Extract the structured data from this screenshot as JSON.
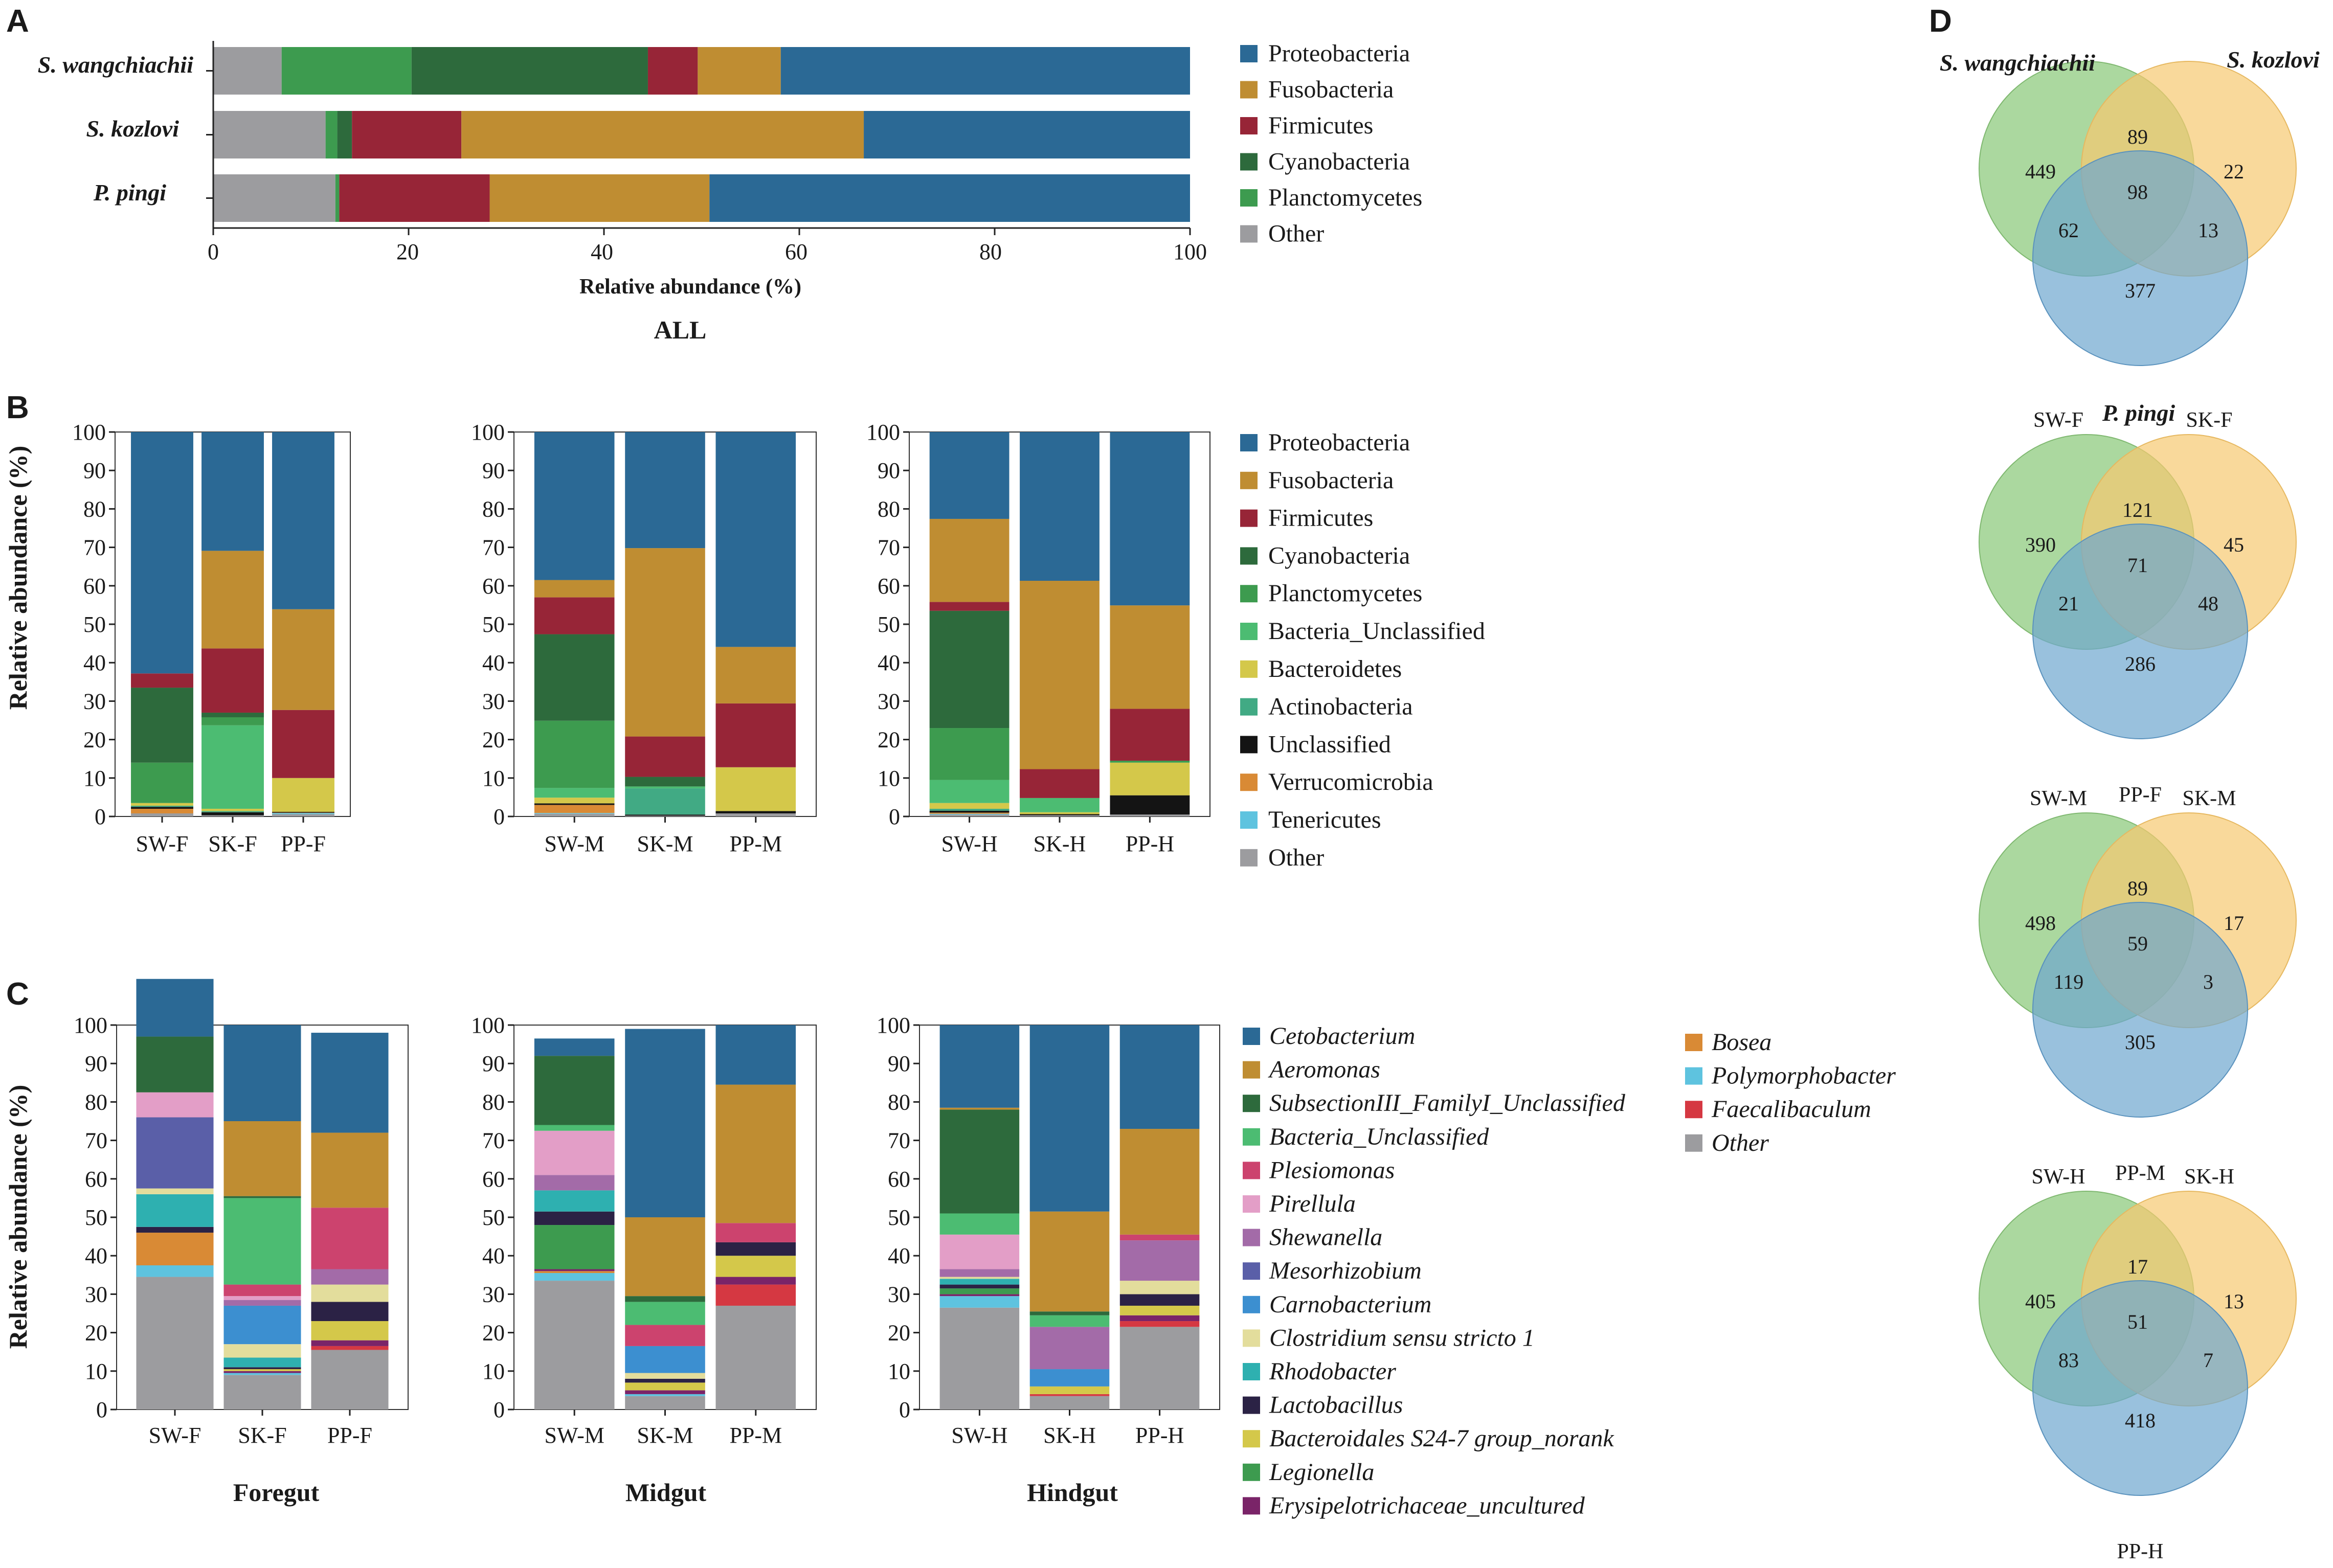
{
  "panels": {
    "A": "A",
    "B": "B",
    "C": "C",
    "D": "D"
  },
  "colors": {
    "Proteobacteria": "#2b6995",
    "Fusobacteria": "#bf8d32",
    "Firmicutes": "#972537",
    "Cyanobacteria": "#2d6a3c",
    "Planctomycetes": "#3d9b4f",
    "Bacteria_Unclassified": "#4cbc72",
    "Bacteroidetes": "#d4c84a",
    "Actinobacteria": "#41aa84",
    "Unclassified": "#141414",
    "Verrucomicrobia": "#d98a35",
    "Tenericutes": "#5ec3df",
    "Other": "#9c9c9f",
    "Cetobacterium": "#2b6995",
    "Aeromonas": "#bf8d32",
    "SubsectionIII_FamilyI_Unclassified": "#2d6a3c",
    "Plesiomonas": "#cc436e",
    "Pirellula": "#e39ec7",
    "Shewanella": "#a36ba8",
    "Mesorhizobium": "#5a5fa8",
    "Carnobacterium": "#3c8fd0",
    "Clostridium sensu stricto 1": "#e3dd9c",
    "Rhodobacter": "#2eb0b0",
    "Lactobacillus": "#2b2245",
    "Bacteroidales S24-7 group_norank": "#d4c84a",
    "Legionella": "#3d9b4f",
    "Erysipelotrichaceae_uncultured": "#7a2468",
    "Bosea": "#d98a35",
    "Polymorphobacter": "#5ec3df",
    "Faecalibaculum": "#d53842",
    "venn_green": "#8fcb7f",
    "venn_orange": "#f6c971",
    "venn_blue": "#6ea6cf"
  },
  "chart_data": [
    {
      "panel": "A",
      "type": "bar",
      "orientation": "horizontal",
      "stacked": true,
      "title": "ALL",
      "xlabel": "Relative abundance (%)",
      "xlim": [
        0,
        100
      ],
      "xticks": [
        "0",
        "20",
        "40",
        "60",
        "80",
        "100"
      ],
      "categories": [
        "S. wangchiachii",
        "S. kozlovi",
        "P. pingi"
      ],
      "series": [
        {
          "name": "Other",
          "values": [
            7,
            11.5,
            12.5
          ]
        },
        {
          "name": "Planctomycetes",
          "values": [
            13.3,
            1.2,
            0.4
          ]
        },
        {
          "name": "Cyanobacteria",
          "values": [
            24.2,
            1.5,
            0
          ]
        },
        {
          "name": "Firmicutes",
          "values": [
            5.1,
            11.2,
            15.4
          ]
        },
        {
          "name": "Fusobacteria",
          "values": [
            8.5,
            41.2,
            22.5
          ]
        },
        {
          "name": "Proteobacteria",
          "values": [
            41.9,
            33.4,
            49.2
          ]
        }
      ],
      "legend": [
        "Proteobacteria",
        "Fusobacteria",
        "Firmicutes",
        "Cyanobacteria",
        "Planctomycetes",
        "Other"
      ]
    },
    {
      "panel": "B",
      "type": "bar",
      "stacked": true,
      "ylabel": "Relative abundance (%)",
      "ylim": [
        0,
        100
      ],
      "yticks": [
        "0",
        "10",
        "20",
        "30",
        "40",
        "50",
        "60",
        "70",
        "80",
        "90",
        "100"
      ],
      "groups": [
        {
          "categories": [
            "SW-F",
            "SK-F",
            "PP-F"
          ]
        },
        {
          "categories": [
            "SW-M",
            "SK-M",
            "PP-M"
          ]
        },
        {
          "categories": [
            "SW-H",
            "SK-H",
            "PP-H"
          ]
        }
      ],
      "stack_order": [
        "Other",
        "Tenericutes",
        "Verrucomicrobia",
        "Unclassified",
        "Actinobacteria",
        "Bacteroidetes",
        "Bacteria_Unclassified",
        "Planctomycetes",
        "Cyanobacteria",
        "Firmicutes",
        "Fusobacteria",
        "Proteobacteria"
      ],
      "bars": [
        [
          0.8,
          0,
          1.2,
          0.5,
          0.3,
          0.7,
          0,
          10.5,
          19.5,
          3.7,
          0,
          62.8
        ],
        [
          0.3,
          0,
          0,
          0.8,
          0.3,
          0.6,
          21.7,
          2.1,
          1.2,
          16.7,
          25.4,
          30.9
        ],
        [
          0.6,
          0.3,
          0.1,
          0.2,
          0,
          8.8,
          0,
          0,
          0,
          17.7,
          26.2,
          46.1
        ],
        [
          0.7,
          0.2,
          2.1,
          0.4,
          0,
          1.5,
          2.5,
          17.5,
          22.5,
          9.6,
          4.5,
          38.5
        ],
        [
          0.2,
          0,
          0,
          0.3,
          6.8,
          0,
          0.5,
          0,
          2.5,
          10.5,
          49,
          30.2
        ],
        [
          0.8,
          0,
          0,
          0.6,
          0,
          11.4,
          0,
          0,
          0,
          16.6,
          14.7,
          55.9
        ],
        [
          0.5,
          0.2,
          0.3,
          0.5,
          0.5,
          1.5,
          6,
          13.5,
          30.5,
          2.3,
          21.6,
          22.6
        ],
        [
          0.3,
          0,
          0,
          0.3,
          0,
          0.5,
          3.7,
          0,
          0,
          7.5,
          49,
          38.7
        ],
        [
          0.5,
          0,
          0,
          5,
          0,
          8.5,
          0,
          0.5,
          0,
          13.5,
          26.9,
          45.1
        ]
      ],
      "legend": [
        "Proteobacteria",
        "Fusobacteria",
        "Firmicutes",
        "Cyanobacteria",
        "Planctomycetes",
        "Bacteria_Unclassified",
        "Bacteroidetes",
        "Actinobacteria",
        "Unclassified",
        "Verrucomicrobia",
        "Tenericutes",
        "Other"
      ]
    },
    {
      "panel": "C",
      "type": "bar",
      "stacked": true,
      "ylabel": "Relative abundance (%)",
      "ylim": [
        0,
        100
      ],
      "yticks": [
        "0",
        "10",
        "20",
        "30",
        "40",
        "50",
        "60",
        "70",
        "80",
        "90",
        "100"
      ],
      "groups": [
        {
          "name": "Foregut",
          "categories": [
            "SW-F",
            "SK-F",
            "PP-F"
          ]
        },
        {
          "name": "Midgut",
          "categories": [
            "SW-M",
            "SK-M",
            "PP-M"
          ]
        },
        {
          "name": "Hindgut",
          "categories": [
            "SW-H",
            "SK-H",
            "PP-H"
          ]
        }
      ],
      "stack_order": [
        "Other",
        "Faecalibaculum",
        "Polymorphobacter",
        "Bosea",
        "Erysipelotrichaceae_uncultured",
        "Legionella",
        "Bacteroidales S24-7 group_norank",
        "Lactobacillus",
        "Rhodobacter",
        "Clostridium sensu stricto 1",
        "Carnobacterium",
        "Mesorhizobium",
        "Shewanella",
        "Pirellula",
        "Plesiomonas",
        "Bacteria_Unclassified",
        "SubsectionIII_FamilyI_Unclassified",
        "Aeromonas",
        "Cetobacterium"
      ],
      "bars": [
        [
          34.5,
          0,
          3,
          8.5,
          0,
          0,
          0,
          1.5,
          8.5,
          1.5,
          0,
          18.5,
          0,
          6.5,
          0,
          0,
          14.5,
          0,
          15
        ],
        [
          9,
          0,
          0.5,
          0,
          0.5,
          0,
          0.5,
          0.5,
          2.5,
          3.5,
          10,
          0,
          1.5,
          1,
          3,
          22.5,
          0.5,
          19.5,
          25
        ],
        [
          15.5,
          1,
          0,
          0,
          1.5,
          0,
          5,
          5,
          0,
          4.5,
          0,
          0,
          4,
          0,
          16,
          0,
          0,
          19.5,
          26
        ],
        [
          33.5,
          0,
          2,
          0.5,
          0.5,
          11.5,
          0,
          3.5,
          5.5,
          0,
          0,
          0,
          4,
          11.5,
          0,
          1.5,
          18,
          0,
          4.5
        ],
        [
          3.5,
          0,
          0.5,
          0,
          1,
          0,
          2,
          1,
          0,
          1.5,
          7,
          0,
          0,
          0,
          5.5,
          6,
          1.5,
          20.5,
          49
        ],
        [
          27,
          5.5,
          0,
          0,
          2,
          0,
          5.5,
          3.5,
          0,
          0,
          0,
          0,
          0,
          0,
          5,
          0,
          0,
          36,
          15.5
        ],
        [
          26.5,
          0,
          3,
          0,
          0.5,
          1.5,
          0,
          1,
          1.5,
          0.5,
          0,
          0,
          2,
          9,
          0,
          5.5,
          27,
          0.5,
          21.5
        ],
        [
          3.5,
          0.5,
          0,
          0,
          0,
          0,
          2,
          0,
          0,
          0,
          4.5,
          0,
          11,
          0,
          0,
          3,
          1,
          26,
          48.5
        ],
        [
          21.5,
          1.5,
          0,
          0,
          1.5,
          0,
          2.5,
          3,
          0,
          3.5,
          0,
          0,
          10.5,
          0,
          1.5,
          0,
          0,
          27.5,
          27
        ]
      ],
      "legend_col1": [
        "Cetobacterium",
        "Aeromonas",
        "SubsectionIII_FamilyI_Unclassified",
        "Bacteria_Unclassified",
        "Plesiomonas",
        "Pirellula",
        "Shewanella",
        "Mesorhizobium",
        "Carnobacterium",
        "Clostridium sensu stricto 1",
        "Rhodobacter",
        "Lactobacillus",
        "Bacteroidales S24-7 group_norank",
        "Legionella",
        "Erysipelotrichaceae_uncultured"
      ],
      "legend_col2": [
        "Bosea",
        "Polymorphobacter",
        "Faecalibaculum",
        "Other"
      ]
    },
    {
      "panel": "D",
      "type": "venn",
      "diagrams": [
        {
          "labels": [
            "S. wangchiachii",
            "S. kozlovi",
            "P. pingi"
          ],
          "italic": true,
          "regions": {
            "a": 449,
            "ab": 89,
            "b": 22,
            "abc": 98,
            "ac": 62,
            "bc": 13,
            "c": 377
          }
        },
        {
          "labels": [
            "SW-F",
            "SK-F",
            "PP-F"
          ],
          "italic": false,
          "regions": {
            "a": 390,
            "ab": 121,
            "b": 45,
            "abc": 71,
            "ac": 21,
            "bc": 48,
            "c": 286
          }
        },
        {
          "labels": [
            "SW-M",
            "SK-M",
            "PP-M"
          ],
          "italic": false,
          "regions": {
            "a": 498,
            "ab": 89,
            "b": 17,
            "abc": 59,
            "ac": 119,
            "bc": 3,
            "c": 305
          }
        },
        {
          "labels": [
            "SW-H",
            "SK-H",
            "PP-H"
          ],
          "italic": false,
          "regions": {
            "a": 405,
            "ab": 17,
            "b": 13,
            "abc": 51,
            "ac": 83,
            "bc": 7,
            "c": 418
          }
        }
      ]
    }
  ]
}
